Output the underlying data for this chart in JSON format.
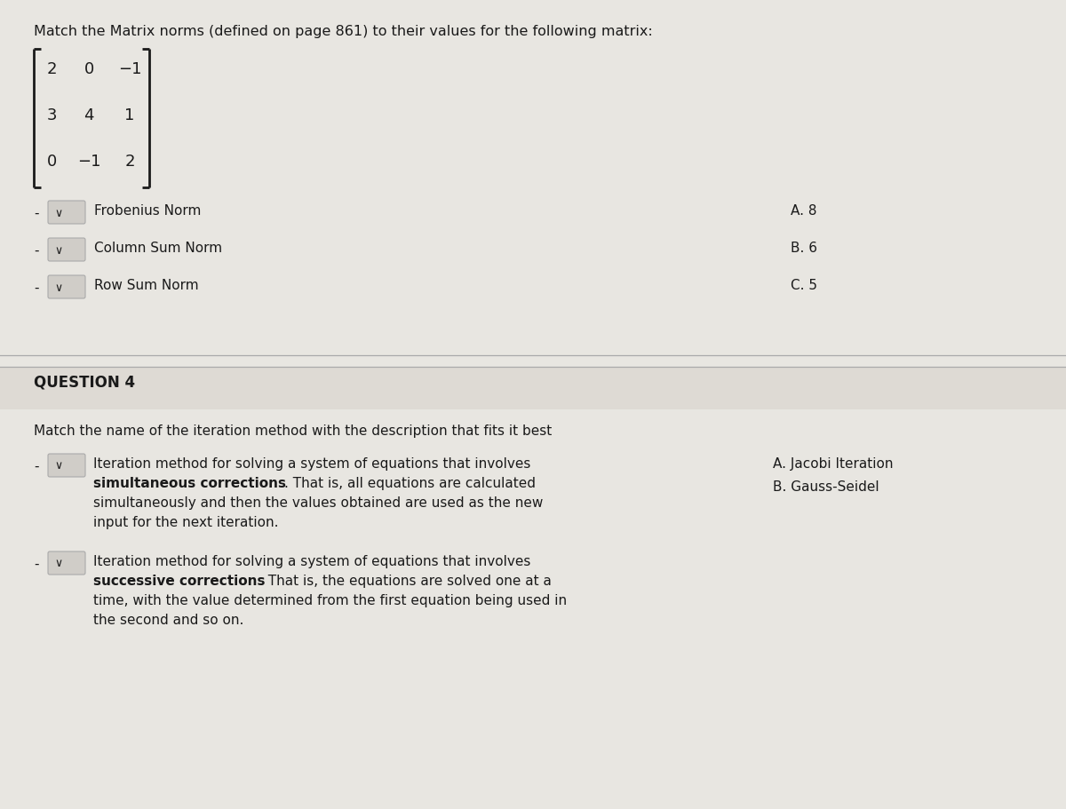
{
  "bg_color": "#e8e6e1",
  "white_bg": "#f2f0ed",
  "title_q3": "Match the Matrix norms (defined on page 861) to their values for the following matrix:",
  "matrix_rows": [
    [
      "2",
      "0",
      "−1"
    ],
    [
      "3",
      "4",
      "1"
    ],
    [
      "0",
      "−1",
      "2"
    ]
  ],
  "norm_items": [
    "Frobenius Norm",
    "Column Sum Norm",
    "Row Sum Norm"
  ],
  "norm_answers": [
    "A. 8",
    "B. 6",
    "C. 5"
  ],
  "question4_label": "QUESTION 4",
  "q4_intro": "Match the name of the iteration method with the description that fits it best",
  "iteration_answers": [
    "A. Jacobi Iteration",
    "B. Gauss-Seidel"
  ],
  "font_size_title": 11.5,
  "font_size_body": 11.0,
  "font_size_matrix": 13,
  "font_size_q4label": 12,
  "text_color": "#1a1a1a",
  "separator_color": "#aaaaaa",
  "q4_bg": "#dedad4",
  "dropdown_box_color": "#d0cdc8",
  "dropdown_box_edge": "#aaaaaa"
}
